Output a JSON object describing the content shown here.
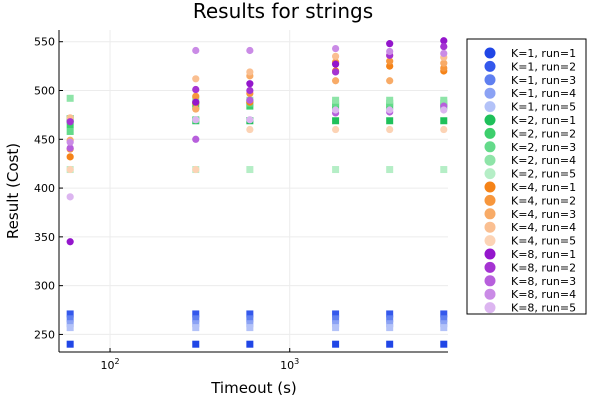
{
  "chart_data": {
    "type": "scatter",
    "title": "Results for strings",
    "xlabel": "Timeout (s)",
    "ylabel": "Result (Cost)",
    "xscale": "log",
    "xlim": [
      52,
      7600
    ],
    "ylim": [
      232,
      562
    ],
    "yticks": [
      250,
      300,
      350,
      400,
      450,
      500,
      550
    ],
    "ytick_labels": [
      "250",
      "300",
      "350",
      "400",
      "450",
      "500",
      "550"
    ],
    "xticks": [
      100,
      1000
    ],
    "xtick_labels": [
      {
        "base": "10",
        "exp": "2"
      },
      {
        "base": "10",
        "exp": "3"
      }
    ],
    "grid": true,
    "legend_position": "right",
    "x": [
      60,
      300,
      600,
      1800,
      3600,
      7200
    ],
    "series": [
      {
        "name": "K=1, run=1",
        "color": "#2046e6",
        "marker": "square",
        "values": [
          240,
          240,
          240,
          240,
          240,
          240
        ]
      },
      {
        "name": "K=1, run=2",
        "color": "#3458ec",
        "marker": "square",
        "values": [
          271,
          271,
          271,
          271,
          271,
          271
        ]
      },
      {
        "name": "K=1, run=3",
        "color": "#5f7ff0",
        "marker": "square",
        "values": [
          266,
          266,
          266,
          266,
          266,
          266
        ]
      },
      {
        "name": "K=1, run=4",
        "color": "#8ba2f4",
        "marker": "square",
        "values": [
          261,
          261,
          261,
          261,
          261,
          261
        ]
      },
      {
        "name": "K=1, run=5",
        "color": "#b3c2f8",
        "marker": "square",
        "values": [
          257,
          257,
          257,
          257,
          257,
          257
        ]
      },
      {
        "name": "K=2, run=1",
        "color": "#1fc05a",
        "marker": "square",
        "values": [
          471,
          469,
          469,
          469,
          469,
          469
        ]
      },
      {
        "name": "K=2, run=2",
        "color": "#3dcf6c",
        "marker": "square",
        "values": [
          465,
          484,
          484,
          484,
          484,
          484
        ]
      },
      {
        "name": "K=2, run=3",
        "color": "#64da8a",
        "marker": "square",
        "values": [
          458,
          470,
          487,
          487,
          487,
          487
        ]
      },
      {
        "name": "K=2, run=4",
        "color": "#8ee4a8",
        "marker": "square",
        "values": [
          492,
          490,
          490,
          490,
          490,
          490
        ]
      },
      {
        "name": "K=2, run=5",
        "color": "#b5eec6",
        "marker": "square",
        "values": [
          419,
          419,
          419,
          419,
          419,
          419
        ]
      },
      {
        "name": "K=4, run=1",
        "color": "#f58318",
        "marker": "circle",
        "values": [
          432,
          487,
          488,
          520,
          525,
          520
        ]
      },
      {
        "name": "K=4, run=2",
        "color": "#f7963c",
        "marker": "circle",
        "values": [
          440,
          494,
          497,
          529,
          530,
          523
        ]
      },
      {
        "name": "K=4, run=3",
        "color": "#f8ab67",
        "marker": "circle",
        "values": [
          449,
          481,
          515,
          510,
          510,
          528
        ]
      },
      {
        "name": "K=4, run=4",
        "color": "#fabf91",
        "marker": "circle",
        "values": [
          472,
          512,
          519,
          535,
          536,
          534
        ]
      },
      {
        "name": "K=4, run=5",
        "color": "#fcd3b5",
        "marker": "circle",
        "values": [
          419,
          419,
          460,
          460,
          460,
          460
        ]
      },
      {
        "name": "K=8, run=1",
        "color": "#9416cc",
        "marker": "circle",
        "values": [
          345,
          488,
          507,
          527,
          548,
          551
        ]
      },
      {
        "name": "K=8, run=2",
        "color": "#a533d2",
        "marker": "circle",
        "values": [
          468,
          501,
          500,
          519,
          536,
          545
        ]
      },
      {
        "name": "K=8, run=3",
        "color": "#b75fdc",
        "marker": "circle",
        "values": [
          441,
          450,
          490,
          477,
          478,
          484
        ]
      },
      {
        "name": "K=8, run=4",
        "color": "#ca8be6",
        "marker": "circle",
        "values": [
          447,
          541,
          541,
          543,
          540,
          538
        ]
      },
      {
        "name": "K=8, run=5",
        "color": "#dcb5f0",
        "marker": "circle",
        "values": [
          391,
          470,
          470,
          480,
          480,
          480
        ]
      }
    ]
  }
}
